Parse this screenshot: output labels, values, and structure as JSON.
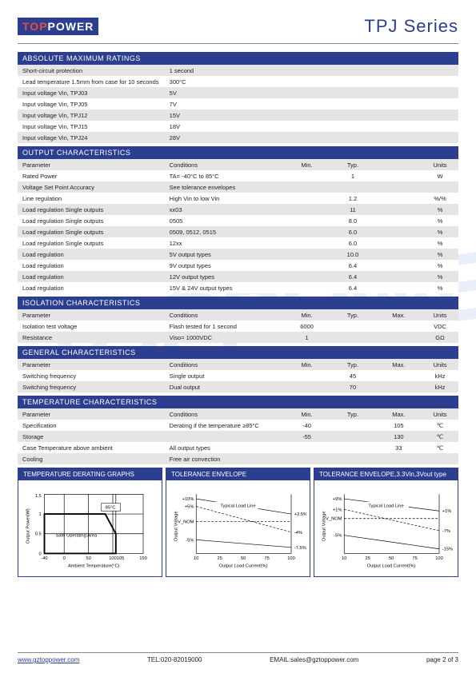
{
  "header": {
    "logo_top": "TOP",
    "logo_power": "POWER",
    "series": "TPJ Series"
  },
  "sections": [
    {
      "title": "ABSOLUTE MAXIMUM RATINGS",
      "cols": [
        "param",
        "cond",
        "",
        "",
        "",
        ""
      ],
      "rows": [
        [
          "Short-circuit protection",
          "1 second",
          "",
          "",
          "",
          ""
        ],
        [
          "Lead temperature 1.5mm from case for 10 seconds",
          "300°C",
          "",
          "",
          "",
          ""
        ],
        [
          "Input voltage Vin, TPJ03",
          "5V",
          "",
          "",
          "",
          ""
        ],
        [
          "Input voltage Vin, TPJ05",
          "7V",
          "",
          "",
          "",
          ""
        ],
        [
          "Input voltage Vin, TPJ12",
          "15V",
          "",
          "",
          "",
          ""
        ],
        [
          "Input voltage Vin, TPJ15",
          "18V",
          "",
          "",
          "",
          ""
        ],
        [
          "Input voltage Vin, TPJ24",
          "28V",
          "",
          "",
          "",
          ""
        ]
      ]
    },
    {
      "title": "OUTPUT CHARACTERISTICS",
      "cols": [
        "param",
        "cond",
        "c",
        "c",
        "",
        ""
      ],
      "header_row": [
        "Parameter",
        "Conditions",
        "Min.",
        "Typ.",
        "",
        "Units"
      ],
      "rows": [
        [
          "Rated Power",
          "TA= -40°C to 85°C",
          "",
          "1",
          "",
          "W"
        ],
        [
          "Voltage Set Point Accuracy",
          "See tolerance envelopes",
          "",
          "",
          "",
          ""
        ],
        [
          "Line regulation",
          "High Vin to low Vin",
          "",
          "1.2",
          "",
          "%/%"
        ],
        [
          "Load regulation Single outputs",
          "xx03",
          "",
          "11",
          "",
          "%"
        ],
        [
          "Load regulation Single outputs",
          "0505",
          "",
          "8.0",
          "",
          "%"
        ],
        [
          "Load regulation Single outputs",
          "0509, 0512, 0515",
          "",
          "6.0",
          "",
          "%"
        ],
        [
          "Load regulation Single outputs",
          "12xx",
          "",
          "6.0",
          "",
          "%"
        ],
        [
          "Load regulation",
          "5V output types",
          "",
          "10.0",
          "",
          "%"
        ],
        [
          "Load regulation",
          "9V output types",
          "",
          "6.4",
          "",
          "%"
        ],
        [
          "Load regulation",
          "12V output types",
          "",
          "6.4",
          "",
          "%"
        ],
        [
          "Load regulation",
          "15V & 24V output types",
          "",
          "6.4",
          "",
          "%"
        ]
      ]
    },
    {
      "title": "ISOLATION CHARACTERISTICS",
      "header_row": [
        "Parameter",
        "Conditions",
        "Min.",
        "Typ.",
        "Max.",
        "Units"
      ],
      "rows": [
        [
          "Isolation test voltage",
          "Flash tested for 1 second",
          "6000",
          "",
          "",
          "VDC"
        ],
        [
          "Resistance",
          "Viso= 1000VDC",
          "1",
          "",
          "",
          "GΩ"
        ]
      ]
    },
    {
      "title": "GENERAL CHARACTERISTICS",
      "header_row": [
        "Parameter",
        "Conditions",
        "Min.",
        "Typ.",
        "Max.",
        "Units"
      ],
      "rows": [
        [
          "Switching frequency",
          "Single output",
          "",
          "45",
          "",
          "kHz"
        ],
        [
          "Switching frequency",
          "Dual output",
          "",
          "70",
          "",
          "kHz"
        ]
      ]
    },
    {
      "title": "TEMPERATURE CHARACTERISTICS",
      "header_row": [
        "Parameter",
        "Conditions",
        "Min.",
        "Typ.",
        "Max.",
        "Units"
      ],
      "rows": [
        [
          "Specification",
          "Derating if the temperature ≥85°C",
          "-40",
          "",
          "105",
          "℃"
        ],
        [
          "Storage",
          "",
          "-55",
          "",
          "130",
          "℃"
        ],
        [
          "Case Temperature   above ambient",
          "All output types",
          "",
          "",
          "33",
          "℃"
        ],
        [
          "Cooling",
          "Free air convection",
          "",
          "",
          "",
          ""
        ]
      ]
    }
  ],
  "graphs": {
    "derating": {
      "title": "TEMPERATURE DERATING GRAPHS",
      "xlabel": "Ambient Temperature(°C)",
      "ylabel": "Output Power(W)",
      "xticks": [
        "-40",
        "0",
        "50",
        "100",
        "105",
        "150"
      ],
      "yticks": [
        "0",
        "0.5",
        "1",
        "1.5"
      ],
      "box_label": "Safe Operating Area",
      "marker_label": "85°C",
      "line_color": "#000000",
      "grid_color": "#000000",
      "bg": "#ffffff"
    },
    "tolerance1": {
      "title": "TOLERANCE ENVELOPE",
      "xlabel": "Output Load Current(%)",
      "ylabel": "Output Voltage",
      "xticks": [
        "10",
        "25",
        "50",
        "75",
        "100"
      ],
      "left_labels": [
        "+10%",
        "+5%",
        "V",
        "-5%"
      ],
      "right_labels": [
        "+2.5%",
        "-4%",
        "-7.5%"
      ],
      "line_label": "Typical Load Line",
      "nom_label": "V_NOM"
    },
    "tolerance2": {
      "title": "TOLERANCE ENVELOPE,3.3Vin,3Vout type",
      "xlabel": "Output Load Current(%)",
      "ylabel": "Output Voltage",
      "xticks": [
        "10",
        "25",
        "50",
        "75",
        "100"
      ],
      "left_labels": [
        "+9%",
        "+1%",
        "V",
        "-5%"
      ],
      "right_labels": [
        "+1%",
        "-7%",
        "-15%"
      ],
      "line_label": "Typical Load Line",
      "nom_label": "V_NOM"
    }
  },
  "footer": {
    "url": "www.gztoppower.com",
    "tel": "TEL:020-82019000",
    "email": "EMAIL:sales@gztoppower.com",
    "page": "page 2 of 3"
  }
}
